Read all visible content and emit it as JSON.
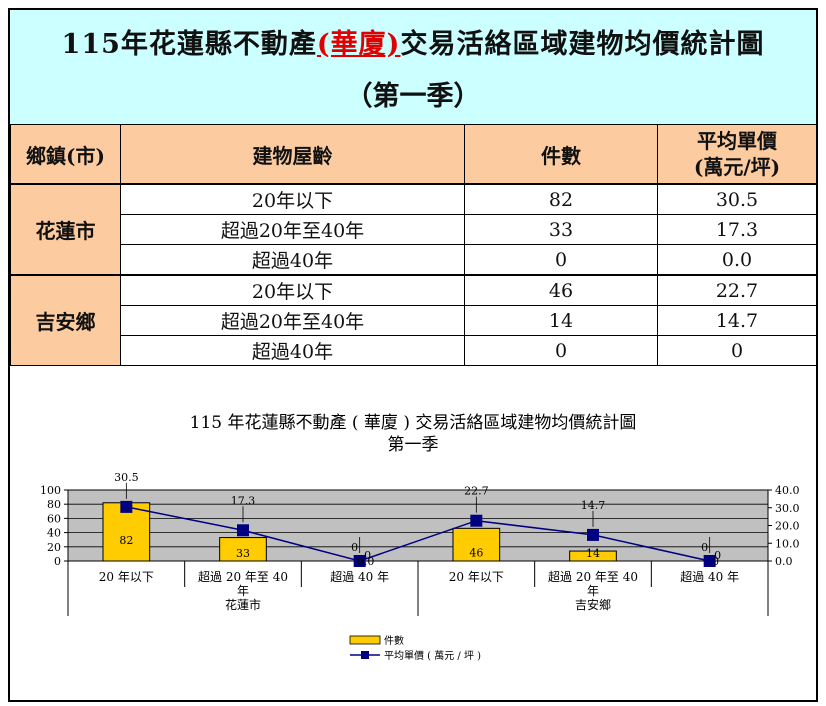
{
  "header": {
    "title_prefix": "115年花蓮縣不動產",
    "title_highlight": "(華廈)",
    "title_suffix": "交易活絡區域建物均價統計圖",
    "subtitle": "（第一季）"
  },
  "table": {
    "columns": [
      "鄉鎮(市)",
      "建物屋齡",
      "件數",
      "平均單價\n(萬元/坪)"
    ],
    "groups": [
      {
        "town": "花蓮市",
        "rows": [
          {
            "age": "20年以下",
            "count": "82",
            "price": "30.5"
          },
          {
            "age": "超過20年至40年",
            "count": "33",
            "price": "17.3"
          },
          {
            "age": "超過40年",
            "count": "0",
            "price": "0.0"
          }
        ]
      },
      {
        "town": "吉安鄉",
        "rows": [
          {
            "age": "20年以下",
            "count": "46",
            "price": "22.7"
          },
          {
            "age": "超過20年至40年",
            "count": "14",
            "price": "14.7"
          },
          {
            "age": "超過40年",
            "count": "0",
            "price": "0"
          }
        ]
      }
    ]
  },
  "chart_data": {
    "type": "bar",
    "title": "115 年花蓮縣不動產 ( 華廈 ) 交易活絡區域建物均價統計圖",
    "subtitle": "第一季",
    "categories": [
      "20 年以下",
      "超過 20 年至 40 年",
      "超過 40 年",
      "20 年以下",
      "超過 20 年至 40 年",
      "超過 40 年"
    ],
    "groups": [
      "花蓮市",
      "吉安鄉"
    ],
    "series": [
      {
        "name": "件數",
        "type": "bar",
        "axis": "left",
        "color": "#ffcc00",
        "values": [
          82,
          33,
          0,
          46,
          14,
          0
        ],
        "labels": [
          "82",
          "33",
          "0",
          "46",
          "14",
          "0"
        ]
      },
      {
        "name": "平均單價 ( 萬元 / 坪 )",
        "type": "line",
        "axis": "right",
        "color": "#000080",
        "values": [
          30.5,
          17.3,
          0,
          22.7,
          14.7,
          0
        ],
        "labels": [
          "30.5",
          "17.3",
          "0.0",
          "22.7",
          "14.7",
          "0"
        ]
      }
    ],
    "ylim_left": [
      0,
      100
    ],
    "yticks_left": [
      "0",
      "20",
      "40",
      "60",
      "80",
      "100"
    ],
    "ylim_right": [
      0,
      40
    ],
    "yticks_right": [
      "0.0",
      "10.0",
      "20.0",
      "30.0",
      "40.0"
    ],
    "plot_background": "#c0c0c0",
    "grid": true,
    "legend": "bottom-center"
  }
}
